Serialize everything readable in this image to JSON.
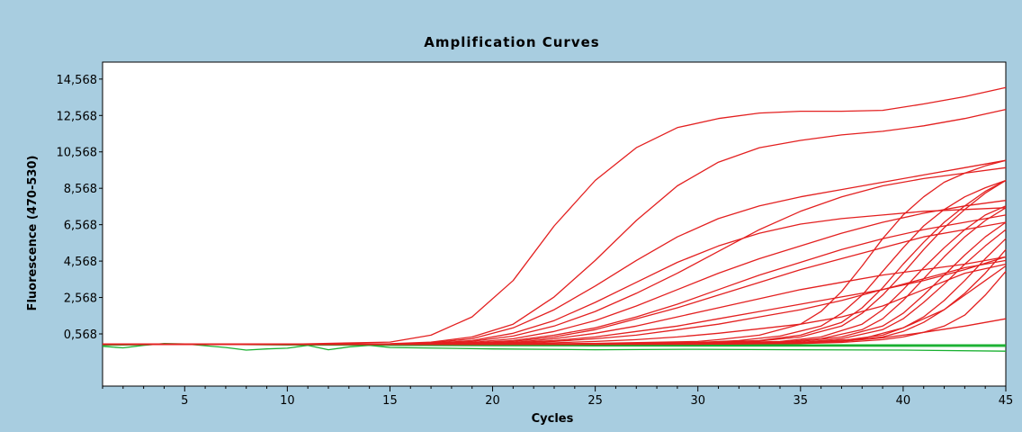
{
  "chart_data": {
    "type": "line",
    "title": "Amplification Curves",
    "xlabel": "Cycles",
    "ylabel": "Fluorescence (470-530)",
    "xlim": [
      1,
      45
    ],
    "ylim": [
      -2300,
      15500
    ],
    "xticks": [
      5,
      10,
      15,
      20,
      25,
      30,
      35,
      40,
      45
    ],
    "xtick_labels": [
      "5",
      "10",
      "15",
      "20",
      "25",
      "30",
      "35",
      "40",
      "45"
    ],
    "yticks": [
      568,
      2568,
      4568,
      6568,
      8568,
      10568,
      12568,
      14568
    ],
    "ytick_labels": [
      "0,568",
      "2,568",
      "4,568",
      "6,568",
      "8,568",
      "10,568",
      "12,568",
      "14,568"
    ],
    "grid": false,
    "colors": {
      "positive": "#e32020",
      "negative": "#18b030",
      "background": "#a8cde0",
      "plot_area": "#ffffff"
    },
    "series": [
      {
        "x": [
          1,
          5,
          10,
          15,
          17,
          19,
          21,
          23,
          25,
          27,
          29,
          31,
          33,
          35,
          37,
          39,
          41,
          43,
          45
        ],
        "y": [
          0,
          0,
          0,
          120,
          500,
          1500,
          3500,
          6500,
          9000,
          10800,
          11900,
          12400,
          12700,
          12800,
          12800,
          12850,
          13200,
          13600,
          14100
        ]
      },
      {
        "x": [
          1,
          5,
          10,
          15,
          17,
          19,
          21,
          23,
          25,
          27,
          29,
          31,
          33,
          35,
          37,
          39,
          41,
          43,
          45
        ],
        "y": [
          0,
          0,
          0,
          30,
          120,
          400,
          1100,
          2600,
          4600,
          6800,
          8700,
          10000,
          10800,
          11200,
          11500,
          11700,
          12000,
          12400,
          12900
        ]
      },
      {
        "x": [
          1,
          5,
          10,
          15,
          17,
          19,
          21,
          23,
          25,
          27,
          29,
          31,
          33,
          35,
          37,
          39,
          41,
          43,
          45
        ],
        "y": [
          0,
          0,
          0,
          20,
          80,
          300,
          900,
          1900,
          3200,
          4600,
          5900,
          6900,
          7600,
          8100,
          8500,
          8900,
          9300,
          9700,
          10100
        ]
      },
      {
        "x": [
          1,
          5,
          10,
          15,
          17,
          19,
          21,
          23,
          25,
          27,
          29,
          31,
          33,
          35,
          37,
          39,
          41,
          43,
          45
        ],
        "y": [
          0,
          0,
          0,
          10,
          50,
          200,
          600,
          1300,
          2300,
          3400,
          4500,
          5400,
          6100,
          6600,
          6900,
          7100,
          7300,
          7400,
          7500
        ]
      },
      {
        "x": [
          1,
          5,
          10,
          15,
          17,
          19,
          21,
          23,
          25,
          27,
          29,
          31,
          33,
          35,
          37,
          39,
          41,
          43,
          45
        ],
        "y": [
          0,
          0,
          0,
          10,
          40,
          150,
          450,
          1000,
          1800,
          2800,
          3900,
          5100,
          6300,
          7300,
          8100,
          8700,
          9100,
          9400,
          9700
        ]
      },
      {
        "x": [
          1,
          5,
          10,
          15,
          17,
          19,
          21,
          23,
          25,
          27,
          29,
          31,
          33,
          35,
          37,
          39,
          41,
          43,
          45
        ],
        "y": [
          0,
          0,
          0,
          0,
          20,
          100,
          300,
          700,
          1300,
          2100,
          3000,
          3900,
          4700,
          5400,
          6100,
          6700,
          7200,
          7600,
          7900
        ]
      },
      {
        "x": [
          1,
          5,
          10,
          15,
          17,
          19,
          21,
          23,
          25,
          27,
          29,
          31,
          33,
          35,
          37,
          39,
          41,
          43,
          45
        ],
        "y": [
          0,
          0,
          0,
          0,
          10,
          60,
          200,
          500,
          900,
          1500,
          2200,
          3000,
          3800,
          4500,
          5200,
          5800,
          6300,
          6700,
          7100
        ]
      },
      {
        "x": [
          1,
          5,
          10,
          15,
          17,
          19,
          21,
          23,
          25,
          27,
          29,
          31,
          33,
          35,
          37,
          39,
          41,
          43,
          45
        ],
        "y": [
          0,
          0,
          0,
          0,
          10,
          50,
          150,
          400,
          800,
          1400,
          2000,
          2700,
          3400,
          4100,
          4700,
          5300,
          5900,
          6300,
          6700
        ]
      },
      {
        "x": [
          1,
          5,
          10,
          15,
          17,
          19,
          21,
          23,
          25,
          27,
          29,
          31,
          33,
          35,
          37,
          39,
          41,
          43,
          45
        ],
        "y": [
          0,
          0,
          0,
          0,
          0,
          30,
          100,
          300,
          600,
          1000,
          1500,
          2000,
          2500,
          3000,
          3400,
          3800,
          4100,
          4400,
          4800
        ]
      },
      {
        "x": [
          1,
          5,
          10,
          15,
          17,
          19,
          21,
          23,
          25,
          27,
          29,
          31,
          33,
          35,
          37,
          39,
          41,
          43,
          45
        ],
        "y": [
          0,
          0,
          0,
          0,
          0,
          20,
          80,
          200,
          400,
          700,
          1000,
          1400,
          1800,
          2200,
          2600,
          3000,
          3500,
          4100,
          4800
        ]
      },
      {
        "x": [
          1,
          5,
          10,
          15,
          17,
          19,
          21,
          23,
          25,
          27,
          29,
          31,
          33,
          35,
          37,
          39,
          41,
          43,
          45
        ],
        "y": [
          0,
          0,
          0,
          0,
          0,
          10,
          50,
          150,
          300,
          500,
          800,
          1100,
          1500,
          1900,
          2400,
          3000,
          3600,
          4200,
          4600
        ]
      },
      {
        "x": [
          1,
          5,
          10,
          15,
          17,
          19,
          21,
          23,
          25,
          27,
          29,
          31,
          33,
          35,
          37,
          39,
          41,
          43,
          45
        ],
        "y": [
          0,
          0,
          0,
          0,
          0,
          0,
          30,
          80,
          150,
          250,
          400,
          600,
          850,
          1100,
          1500,
          2100,
          3000,
          3900,
          4400
        ]
      },
      {
        "x": [
          1,
          5,
          10,
          15,
          20,
          25,
          30,
          31,
          33,
          35,
          36,
          37,
          38,
          39,
          40,
          41,
          42,
          43,
          44,
          45
        ],
        "y": [
          0,
          0,
          0,
          0,
          0,
          50,
          150,
          250,
          500,
          1100,
          1800,
          2900,
          4300,
          5800,
          7100,
          8100,
          8900,
          9400,
          9800,
          10100
        ]
      },
      {
        "x": [
          1,
          5,
          10,
          15,
          20,
          25,
          30,
          32,
          34,
          36,
          37,
          38,
          39,
          40,
          41,
          42,
          43,
          44,
          45
        ],
        "y": [
          0,
          0,
          0,
          0,
          0,
          30,
          100,
          200,
          450,
          1000,
          1700,
          2700,
          4000,
          5300,
          6500,
          7400,
          8100,
          8600,
          9000
        ]
      },
      {
        "x": [
          1,
          5,
          10,
          15,
          20,
          25,
          30,
          33,
          35,
          37,
          38,
          39,
          40,
          41,
          42,
          43,
          44,
          45
        ],
        "y": [
          0,
          0,
          0,
          0,
          0,
          20,
          80,
          200,
          500,
          1200,
          2000,
          3100,
          4400,
          5600,
          6700,
          7600,
          8400,
          9000
        ]
      },
      {
        "x": [
          1,
          5,
          10,
          15,
          20,
          25,
          30,
          33,
          35,
          37,
          38,
          39,
          40,
          41,
          42,
          43,
          44,
          45
        ],
        "y": [
          0,
          0,
          0,
          0,
          0,
          20,
          70,
          180,
          400,
          1000,
          1700,
          2700,
          3900,
          5200,
          6400,
          7400,
          8300,
          9000
        ]
      },
      {
        "x": [
          1,
          5,
          10,
          15,
          20,
          25,
          30,
          34,
          36,
          38,
          39,
          40,
          41,
          42,
          43,
          44,
          45
        ],
        "y": [
          0,
          0,
          0,
          0,
          0,
          10,
          50,
          150,
          400,
          1100,
          1900,
          3000,
          4200,
          5300,
          6300,
          7100,
          7600
        ]
      },
      {
        "x": [
          1,
          5,
          10,
          15,
          20,
          25,
          30,
          34,
          36,
          38,
          39,
          40,
          41,
          42,
          43,
          44,
          45
        ],
        "y": [
          0,
          0,
          0,
          0,
          0,
          10,
          40,
          120,
          300,
          800,
          1400,
          2400,
          3600,
          4800,
          5900,
          6800,
          7500
        ]
      },
      {
        "x": [
          1,
          5,
          10,
          15,
          20,
          25,
          30,
          35,
          37,
          39,
          40,
          41,
          42,
          43,
          44,
          45
        ],
        "y": [
          0,
          0,
          0,
          0,
          0,
          0,
          30,
          150,
          400,
          1000,
          1700,
          2700,
          3800,
          4900,
          5900,
          6700
        ]
      },
      {
        "x": [
          1,
          5,
          10,
          15,
          20,
          25,
          30,
          35,
          37,
          39,
          40,
          41,
          42,
          43,
          44,
          45
        ],
        "y": [
          0,
          0,
          0,
          0,
          0,
          0,
          20,
          100,
          300,
          800,
          1400,
          2300,
          3300,
          4400,
          5400,
          6300
        ]
      },
      {
        "x": [
          1,
          5,
          10,
          15,
          20,
          25,
          30,
          35,
          37,
          39,
          40,
          41,
          42,
          43,
          44,
          45
        ],
        "y": [
          0,
          0,
          0,
          0,
          0,
          0,
          20,
          80,
          200,
          500,
          900,
          1500,
          2400,
          3500,
          4700,
          5800
        ]
      },
      {
        "x": [
          1,
          5,
          10,
          15,
          20,
          25,
          30,
          35,
          37,
          39,
          40,
          41,
          42,
          43,
          44,
          45
        ],
        "y": [
          0,
          0,
          0,
          0,
          0,
          0,
          10,
          60,
          150,
          400,
          700,
          1200,
          1900,
          2700,
          3500,
          4300
        ]
      },
      {
        "x": [
          1,
          5,
          10,
          15,
          20,
          25,
          30,
          35,
          37,
          39,
          40,
          41,
          42,
          43,
          44,
          45
        ],
        "y": [
          0,
          0,
          0,
          0,
          0,
          0,
          10,
          40,
          100,
          250,
          400,
          650,
          1000,
          1600,
          2700,
          4000
        ]
      },
      {
        "x": [
          1,
          5,
          10,
          15,
          20,
          25,
          30,
          35,
          37,
          39,
          41,
          43,
          45
        ],
        "y": [
          0,
          0,
          0,
          0,
          0,
          0,
          0,
          50,
          150,
          350,
          650,
          1000,
          1400
        ]
      },
      {
        "x": [
          1,
          5,
          10,
          15,
          20,
          25,
          30,
          35,
          38,
          40,
          42,
          43,
          44,
          45
        ],
        "y": [
          0,
          0,
          0,
          0,
          0,
          0,
          0,
          80,
          300,
          900,
          1900,
          2800,
          3900,
          5200
        ]
      },
      {
        "x": [
          1,
          2,
          3,
          4,
          5,
          6,
          7,
          8,
          9,
          10,
          11,
          12,
          13,
          14,
          15,
          20,
          25,
          30,
          35,
          40,
          45
        ],
        "y": [
          -120,
          -200,
          -60,
          40,
          20,
          -80,
          -180,
          -320,
          -260,
          -220,
          -60,
          -300,
          -150,
          -60,
          -180,
          -260,
          -300,
          -280,
          -300,
          -320,
          -380
        ],
        "negative": true
      },
      {
        "x": [
          1,
          5,
          10,
          15,
          20,
          25,
          30,
          35,
          40,
          45
        ],
        "y": [
          -60,
          10,
          -40,
          -60,
          -80,
          -90,
          -100,
          -100,
          -110,
          -120
        ],
        "negative": true
      },
      {
        "x": [
          1,
          5,
          10,
          15,
          20,
          25,
          30,
          35,
          40,
          45
        ],
        "y": [
          -40,
          0,
          -20,
          -30,
          -40,
          -40,
          -50,
          -50,
          -60,
          -60
        ],
        "negative": true
      },
      {
        "x": [
          1,
          5,
          10,
          15,
          20,
          25,
          30,
          35,
          40,
          45
        ],
        "y": [
          -20,
          0,
          -10,
          -10,
          -20,
          -20,
          -20,
          -30,
          -30,
          -30
        ],
        "negative": true
      }
    ]
  }
}
